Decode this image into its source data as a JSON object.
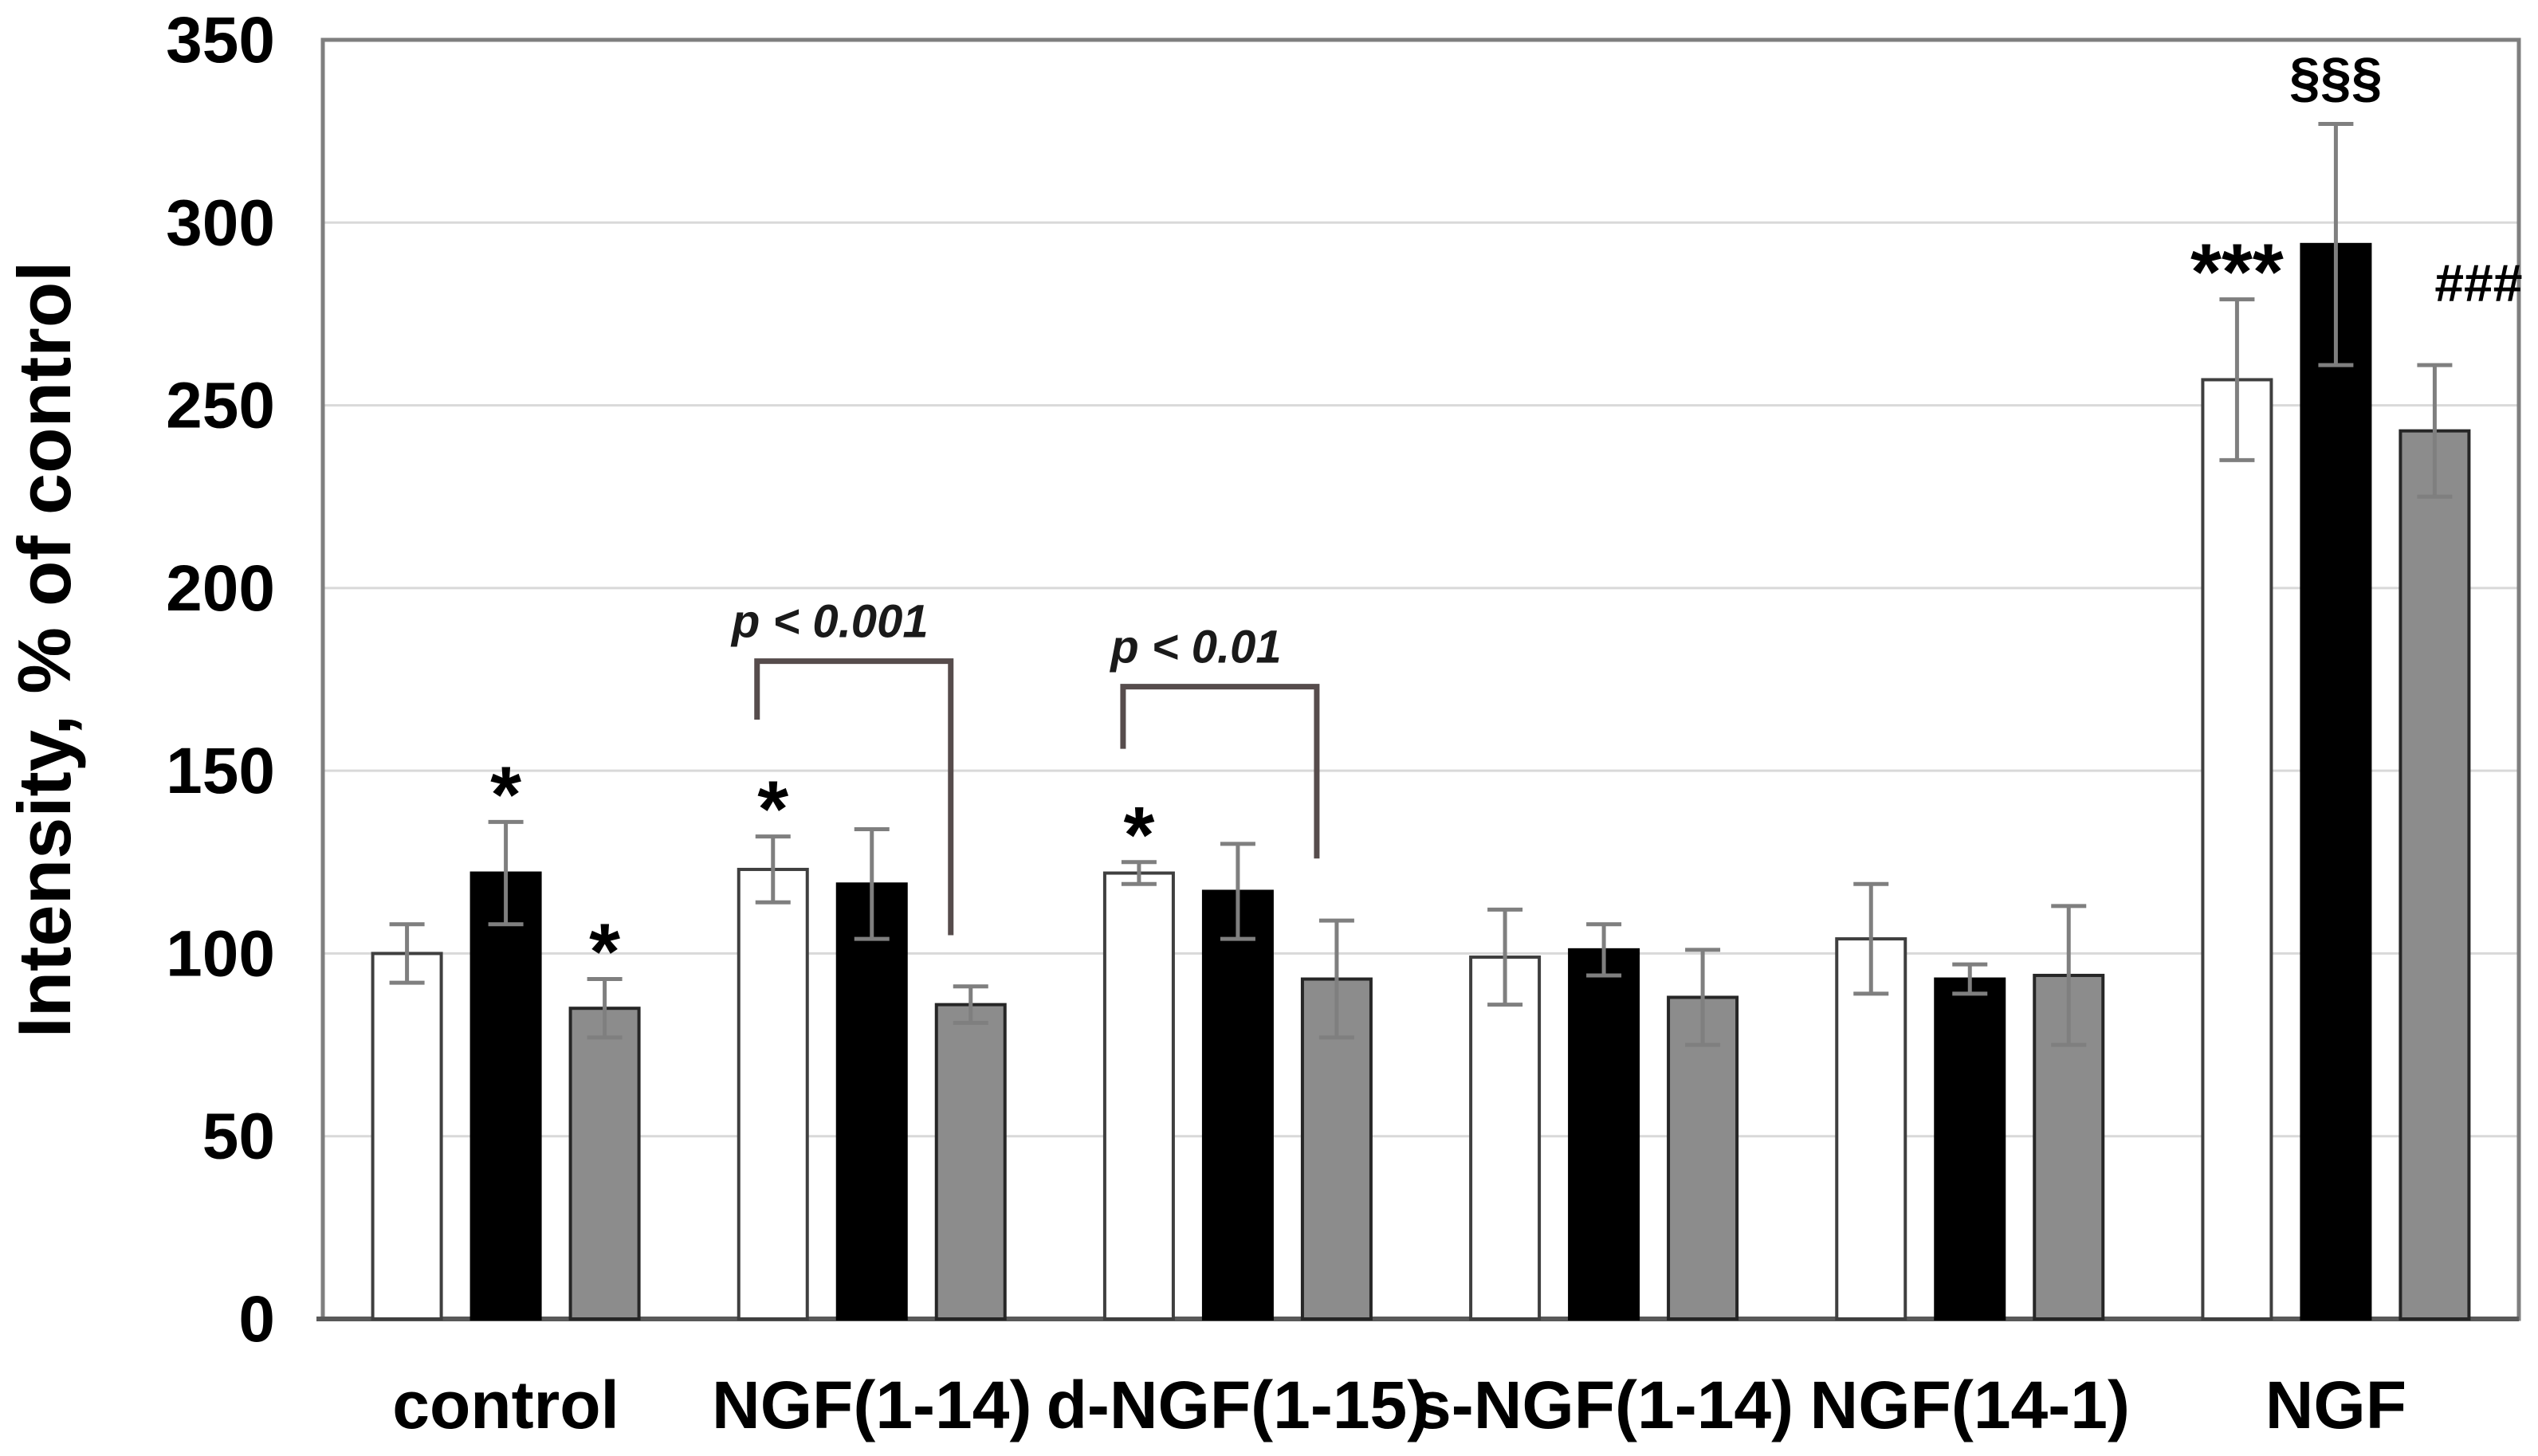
{
  "chart_data": {
    "type": "bar",
    "title": "",
    "xlabel": "",
    "ylabel": "Intensity, % of control",
    "ylim": [
      0,
      350
    ],
    "ytick_step": 50,
    "yticks": [
      0,
      50,
      100,
      150,
      200,
      250,
      300,
      350
    ],
    "grid": "horizontal-light",
    "legend": "none",
    "categories": [
      "control",
      "NGF(1-14)",
      "d-NGF(1-15)",
      "s-NGF(1-14)",
      "NGF(14-1)",
      "NGF"
    ],
    "series": [
      {
        "name": "white",
        "fill": "#ffffff",
        "stroke": "#3f3f3f",
        "values": [
          100,
          123,
          122,
          99,
          104,
          257
        ],
        "errors": [
          8,
          9,
          3,
          13,
          15,
          22
        ],
        "marks": [
          "",
          "*",
          "*",
          "",
          "",
          "***"
        ]
      },
      {
        "name": "black",
        "fill": "#000000",
        "stroke": "#000000",
        "values": [
          122,
          119,
          117,
          101,
          93,
          294
        ],
        "errors": [
          14,
          15,
          13,
          7,
          4,
          33
        ],
        "marks": [
          "*",
          "",
          "",
          "",
          "",
          "§§§"
        ]
      },
      {
        "name": "gray",
        "fill": "#8c8c8c",
        "stroke": "#262626",
        "values": [
          85,
          86,
          93,
          88,
          94,
          243
        ],
        "errors": [
          8,
          5,
          16,
          13,
          19,
          18
        ],
        "marks": [
          "*",
          "",
          "",
          "",
          "",
          "###"
        ]
      }
    ],
    "significance_brackets": [
      {
        "group": 1,
        "from_series": "white",
        "to_series": "gray",
        "label": "p < 0.001",
        "top_value": 180,
        "left_leg_end_value": 164,
        "right_leg_end_value": 105
      },
      {
        "group": 2,
        "from_series": "white",
        "to_series": "gray",
        "label": "p < 0.01",
        "top_value": 173,
        "left_leg_end_value": 156,
        "right_leg_end_value": 126
      }
    ],
    "colors": {
      "error_bar": "#7f7f7f",
      "gridline": "#d9d9d9",
      "plot_border": "#7f7f7f",
      "axis_line": "#595959",
      "bracket": "#564c4c",
      "text": "#000000"
    }
  }
}
